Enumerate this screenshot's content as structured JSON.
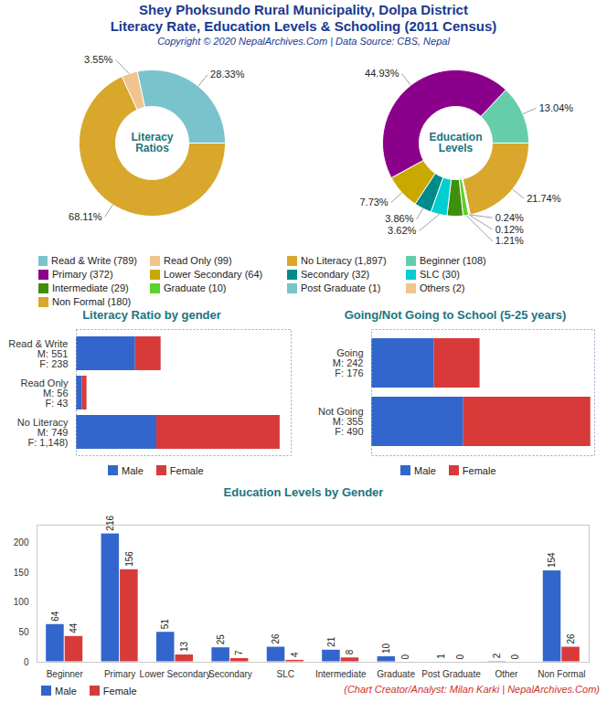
{
  "header": {
    "title": "Shey Phoksundo Rural Municipality, Dolpa District",
    "subtitle": "Literacy Rate, Education Levels & Schooling (2011 Census)",
    "copyright": "Copyright © 2020 NepalArchives.Com | Data Source: CBS, Nepal"
  },
  "footer": {
    "credit": "(Chart Creator/Analyst: Milan Karki | NepalArchives.Com)"
  },
  "chart_data": [
    {
      "type": "pie",
      "title": "Literacy Ratios",
      "categories": [
        "Read & Write (789)",
        "Read Only (99)",
        "No Literacy (1,897)"
      ],
      "values": [
        28.33,
        3.55,
        68.11
      ],
      "value_labels": [
        "28.33%",
        "3.55%",
        "68.11%"
      ],
      "colors": [
        "#79c4cc",
        "#f1c48f",
        "#d8a72b"
      ],
      "data_labels": true,
      "legend": "bottom"
    },
    {
      "type": "pie",
      "title": "Education Levels",
      "categories": [
        "Beginner (108)",
        "Primary (372)",
        "Lower Secondary (64)",
        "Secondary (32)",
        "SLC (30)",
        "Intermediate (29)",
        "Graduate (10)",
        "Post Graduate (1)",
        "Others (2)",
        "Non Formal (180)"
      ],
      "values": [
        13.04,
        44.93,
        7.73,
        3.86,
        3.62,
        3.5,
        1.21,
        0.12,
        0.24,
        21.74
      ],
      "value_labels": [
        "13.04%",
        "44.93%",
        "7.73%",
        "3.86%",
        "3.62%",
        null,
        "1.21%",
        "0.12%",
        "0.24%",
        "21.74%"
      ],
      "colors": [
        "#66cdaa",
        "#8b008b",
        "#c9a800",
        "#008b8b",
        "#00ced1",
        "#3f8f0d",
        "#5cd12c",
        "#79c4cc",
        "#f1c48f",
        "#d8a72b"
      ],
      "data_labels": true,
      "legend": "bottom"
    },
    {
      "type": "bar",
      "orientation": "horizontal",
      "stacked": true,
      "title": "Literacy Ratio by gender",
      "categories": [
        "Read & Write\nM: 551\nF: 238",
        "Read Only\nM: 56\nF: 43",
        "No Literacy\nM: 749\nF: 1,148)"
      ],
      "series": [
        {
          "name": "Male",
          "color": "#3366cc",
          "values": [
            551,
            56,
            749
          ]
        },
        {
          "name": "Female",
          "color": "#d83a3a",
          "values": [
            238,
            43,
            1148
          ]
        }
      ],
      "xlim": [
        0,
        2000
      ],
      "tick_labels": "y",
      "legend": "bottom"
    },
    {
      "type": "bar",
      "orientation": "horizontal",
      "stacked": true,
      "title": "Going/Not Going to School (5-25 years)",
      "categories": [
        "Going\nM: 242\nF: 176",
        "Not Going\nM: 355\nF: 490"
      ],
      "series": [
        {
          "name": "Male",
          "color": "#3366cc",
          "values": [
            242,
            355
          ]
        },
        {
          "name": "Female",
          "color": "#d83a3a",
          "values": [
            176,
            490
          ]
        }
      ],
      "xlim": [
        0,
        860
      ],
      "tick_labels": "y",
      "legend": "bottom"
    },
    {
      "type": "bar",
      "title": "Education Levels by Gender",
      "categories": [
        "Beginner",
        "Primary",
        "Lower Secondary",
        "Secondary",
        "SLC",
        "Intermediate",
        "Graduate",
        "Post Graduate",
        "Other",
        "Non Formal"
      ],
      "series": [
        {
          "name": "Male",
          "color": "#3366cc",
          "values": [
            64,
            216,
            51,
            25,
            26,
            21,
            10,
            1,
            2,
            154
          ]
        },
        {
          "name": "Female",
          "color": "#d83a3a",
          "values": [
            44,
            156,
            13,
            7,
            4,
            8,
            0,
            0,
            0,
            26
          ]
        }
      ],
      "ylim": [
        0,
        230
      ],
      "yticks": [
        0,
        50,
        100,
        150,
        200
      ],
      "data_labels": true,
      "grid": false,
      "legend": "bottom"
    }
  ]
}
